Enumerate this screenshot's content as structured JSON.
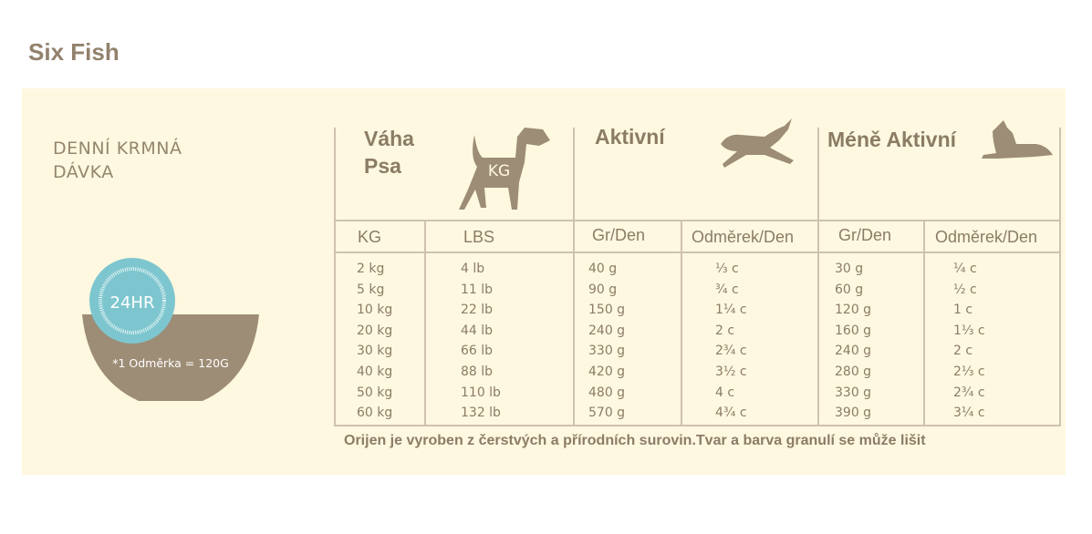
{
  "title": "Six Fish",
  "daily_label": [
    "DENNÍ KRMNÁ",
    "DÁVKA"
  ],
  "bowl": {
    "clock": "24HR",
    "note": "*1 Odměrka = 120G",
    "teal": "#7ec6cf",
    "bowl_color": "#9d8d76"
  },
  "table": {
    "headers": {
      "weight": [
        "Váha",
        "Psa"
      ],
      "weight_badge": "KG",
      "active": "Aktivní",
      "less_active": "Méně Aktivní"
    },
    "subheaders": [
      "KG",
      "LBS",
      "Gr/Den",
      "Odměrek/Den",
      "Gr/Den",
      "Odměrek/Den"
    ],
    "columns": [
      [
        "2 kg",
        "5 kg",
        "10 kg",
        "20 kg",
        "30 kg",
        "40 kg",
        "50 kg",
        "60 kg"
      ],
      [
        "4 lb",
        "11 lb",
        "22 lb",
        "44 lb",
        "66 lb",
        "88 lb",
        "110 lb",
        "132 lb"
      ],
      [
        "40 g",
        "90 g",
        "150 g",
        "240 g",
        "330 g",
        "420 g",
        "480 g",
        "570 g"
      ],
      [
        "⅓ c",
        "¾ c",
        "1¼ c",
        "2 c",
        "2¾ c",
        "3½ c",
        "4 c",
        "4¾ c"
      ],
      [
        "30 g",
        "60 g",
        "120 g",
        "160 g",
        "240 g",
        "280 g",
        "330 g",
        "390 g"
      ],
      [
        "¼ c",
        "½ c",
        "1 c",
        "1⅓ c",
        "2 c",
        "2⅓ c",
        "2¾ c",
        "3¼ c"
      ]
    ]
  },
  "footnote": "Orijen je vyroben z čerstvých a přírodních surovin.Tvar a barva granulí se může lišit"
}
